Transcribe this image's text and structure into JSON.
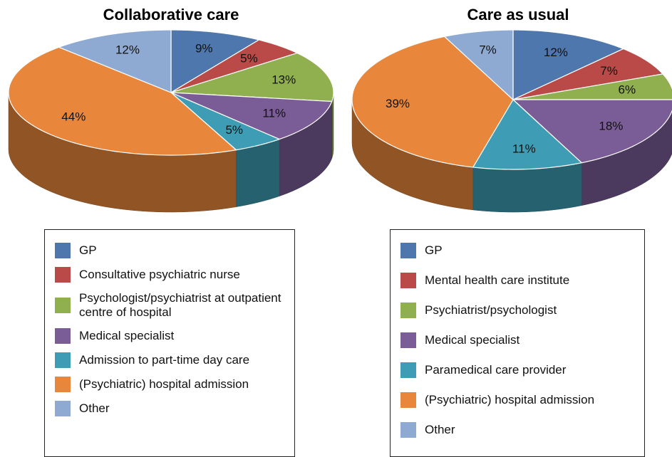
{
  "chart_data": [
    {
      "type": "pie",
      "title": "Collaborative care",
      "categories": [
        "GP",
        "Consultative psychiatric nurse",
        "Psychologist/psychiatrist at outpatient centre of hospital",
        "Medical specialist",
        "Admission to part-time day care",
        "(Psychiatric) hospital admission",
        "Other"
      ],
      "values": [
        9,
        5,
        13,
        11,
        5,
        44,
        12
      ],
      "value_labels": [
        "9%",
        "5%",
        "13%",
        "11%",
        "5%",
        "44%",
        "12%"
      ],
      "colors": [
        "#4e77ad",
        "#b94a48",
        "#90b04f",
        "#7a5c97",
        "#3e9db4",
        "#e8873c",
        "#8eaad2"
      ]
    },
    {
      "type": "pie",
      "title": "Care as usual",
      "categories": [
        "GP",
        "Mental health care institute",
        "Psychiatrist/psychologist",
        "Medical specialist",
        "Paramedical care provider",
        "(Psychiatric) hospital admission",
        "Other"
      ],
      "values": [
        12,
        7,
        6,
        18,
        11,
        39,
        7
      ],
      "value_labels": [
        "12%",
        "7%",
        "6%",
        "18%",
        "11%",
        "39%",
        "7%"
      ],
      "colors": [
        "#4e77ad",
        "#b94a48",
        "#90b04f",
        "#7a5c97",
        "#3e9db4",
        "#e8873c",
        "#8eaad2"
      ]
    }
  ]
}
